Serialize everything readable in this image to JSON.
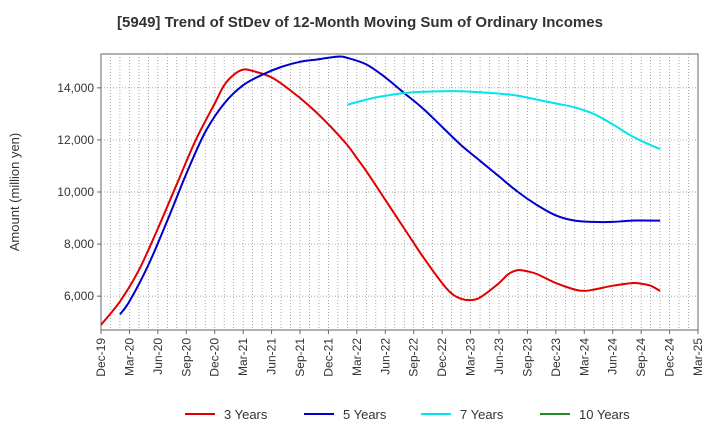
{
  "chart_data": {
    "type": "line",
    "title": "[5949]  Trend of StDev of 12-Month Moving Sum of Ordinary Incomes",
    "xlabel": "",
    "ylabel": "Amount (million yen)",
    "x_ticks": [
      "Dec-19",
      "Mar-20",
      "Jun-20",
      "Sep-20",
      "Dec-20",
      "Mar-21",
      "Jun-21",
      "Sep-21",
      "Dec-21",
      "Mar-22",
      "Jun-22",
      "Sep-22",
      "Dec-22",
      "Mar-23",
      "Jun-23",
      "Sep-23",
      "Dec-23",
      "Mar-24",
      "Jun-24",
      "Sep-24",
      "Dec-24",
      "Mar-25"
    ],
    "y_ticks": [
      6000,
      8000,
      10000,
      12000,
      14000
    ],
    "y_tick_labels": [
      "6,000",
      "8,000",
      "10,000",
      "12,000",
      "14,000"
    ],
    "ylim": [
      4700,
      15300
    ],
    "xlim": [
      0,
      63
    ],
    "grid": true,
    "legend_position": "bottom",
    "series": [
      {
        "name": "3 Years",
        "color": "#e00000",
        "points": [
          [
            0,
            4900
          ],
          [
            2,
            5800
          ],
          [
            4,
            7000
          ],
          [
            6,
            8600
          ],
          [
            8,
            10300
          ],
          [
            10,
            12000
          ],
          [
            12,
            13400
          ],
          [
            13,
            14100
          ],
          [
            14,
            14500
          ],
          [
            15,
            14700
          ],
          [
            16,
            14650
          ],
          [
            18,
            14400
          ],
          [
            20,
            13900
          ],
          [
            22,
            13300
          ],
          [
            24,
            12600
          ],
          [
            26,
            11800
          ],
          [
            27,
            11300
          ],
          [
            28,
            10800
          ],
          [
            30,
            9700
          ],
          [
            32,
            8600
          ],
          [
            34,
            7500
          ],
          [
            36,
            6500
          ],
          [
            37,
            6100
          ],
          [
            38,
            5900
          ],
          [
            39,
            5850
          ],
          [
            40,
            5950
          ],
          [
            42,
            6500
          ],
          [
            43,
            6850
          ],
          [
            44,
            7000
          ],
          [
            45,
            6950
          ],
          [
            46,
            6850
          ],
          [
            48,
            6500
          ],
          [
            50,
            6250
          ],
          [
            51,
            6200
          ],
          [
            52,
            6250
          ],
          [
            54,
            6400
          ],
          [
            56,
            6500
          ],
          [
            57,
            6480
          ],
          [
            58,
            6400
          ],
          [
            59,
            6200
          ]
        ]
      },
      {
        "name": "5 Years",
        "color": "#0000cc",
        "points": [
          [
            2,
            5300
          ],
          [
            3,
            5800
          ],
          [
            5,
            7200
          ],
          [
            7,
            8900
          ],
          [
            9,
            10700
          ],
          [
            11,
            12300
          ],
          [
            13,
            13400
          ],
          [
            15,
            14100
          ],
          [
            17,
            14500
          ],
          [
            19,
            14800
          ],
          [
            21,
            15000
          ],
          [
            23,
            15100
          ],
          [
            25,
            15200
          ],
          [
            26,
            15150
          ],
          [
            28,
            14900
          ],
          [
            30,
            14400
          ],
          [
            32,
            13800
          ],
          [
            34,
            13200
          ],
          [
            36,
            12500
          ],
          [
            38,
            11800
          ],
          [
            40,
            11200
          ],
          [
            42,
            10600
          ],
          [
            44,
            10000
          ],
          [
            46,
            9500
          ],
          [
            48,
            9100
          ],
          [
            50,
            8900
          ],
          [
            52,
            8850
          ],
          [
            54,
            8850
          ],
          [
            56,
            8900
          ],
          [
            59,
            8900
          ]
        ]
      },
      {
        "name": "7 Years",
        "color": "#00e5ee",
        "points": [
          [
            26,
            13350
          ],
          [
            28,
            13550
          ],
          [
            30,
            13700
          ],
          [
            32,
            13800
          ],
          [
            34,
            13850
          ],
          [
            36,
            13870
          ],
          [
            38,
            13870
          ],
          [
            40,
            13830
          ],
          [
            42,
            13780
          ],
          [
            44,
            13700
          ],
          [
            46,
            13550
          ],
          [
            48,
            13400
          ],
          [
            50,
            13250
          ],
          [
            52,
            13000
          ],
          [
            54,
            12600
          ],
          [
            56,
            12150
          ],
          [
            58,
            11800
          ],
          [
            59,
            11650
          ]
        ]
      },
      {
        "name": "10 Years",
        "color": "#228b22",
        "points": []
      }
    ]
  }
}
